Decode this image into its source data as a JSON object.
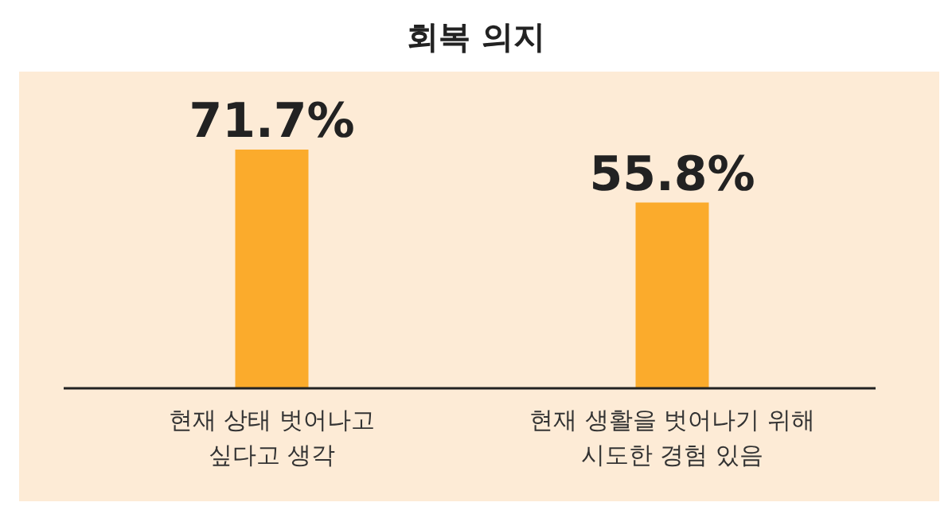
{
  "chart_data": {
    "type": "bar",
    "title": "회복 의지",
    "categories": [
      "현재 상태 벗어나고\n싶다고 생각",
      "현재 생활을 벗어나기 위해\n시도한 경험 있음"
    ],
    "values": [
      71.7,
      55.8
    ],
    "color": "#fbab2c",
    "value_labels": [
      "71.7%",
      "55.8%"
    ]
  }
}
